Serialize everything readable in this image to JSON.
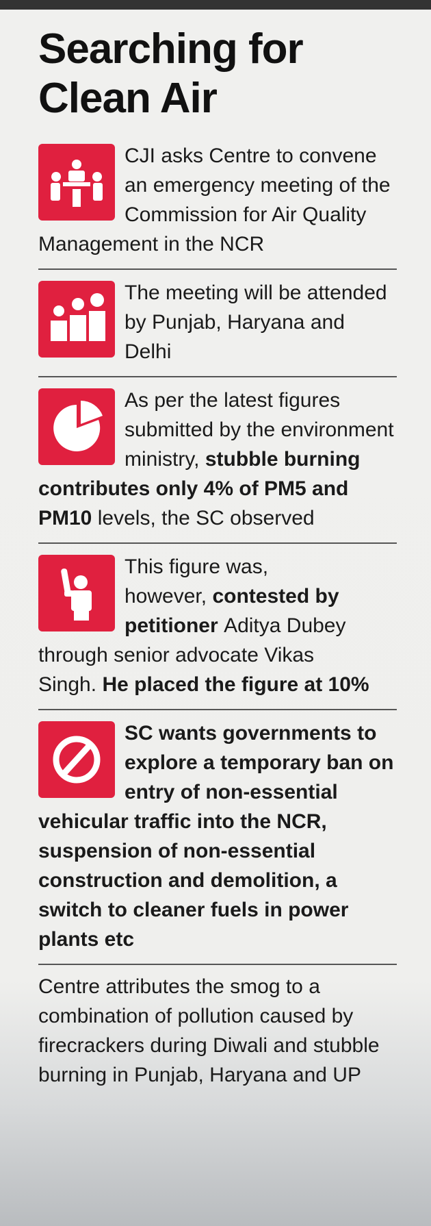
{
  "header": {
    "title": "Searching for Clean Air"
  },
  "items": [
    {
      "segments": [
        {
          "text": "CJI asks Centre to convene an emergency meeting of the Commission for Air Quality Management in the NCR",
          "bold": false
        }
      ]
    },
    {
      "segments": [
        {
          "text": "The meeting will be attended by Punjab, Haryana and Delhi",
          "bold": false
        }
      ]
    },
    {
      "segments": [
        {
          "text": "As per the latest figures submitted by the environment ministry,",
          "bold": false
        },
        {
          "text": "stubble burning contributes only 4% of PM5 and PM10",
          "bold": true
        },
        {
          "text": "levels, the SC observed",
          "bold": false
        }
      ]
    },
    {
      "segments": [
        {
          "text": "This figure was, however,",
          "bold": false
        },
        {
          "text": "contested by petitioner",
          "bold": true
        },
        {
          "text": "Aditya Dubey through senior advocate Vikas Singh.",
          "bold": false
        },
        {
          "text": "He placed the figure at 10%",
          "bold": true
        }
      ]
    },
    {
      "segments": [
        {
          "text": "SC wants governments to explore a temporary ban on entry of non-essential vehicular traffic into the NCR, suspension of non-essential construction and demolition, a switch to cleaner fuels in power plants etc",
          "bold": true
        }
      ]
    }
  ],
  "footer": {
    "text": "Centre attributes the smog to a combination of pollution caused by firecrackers during Diwali and stubble burning in Punjab, Haryana and UP"
  }
}
